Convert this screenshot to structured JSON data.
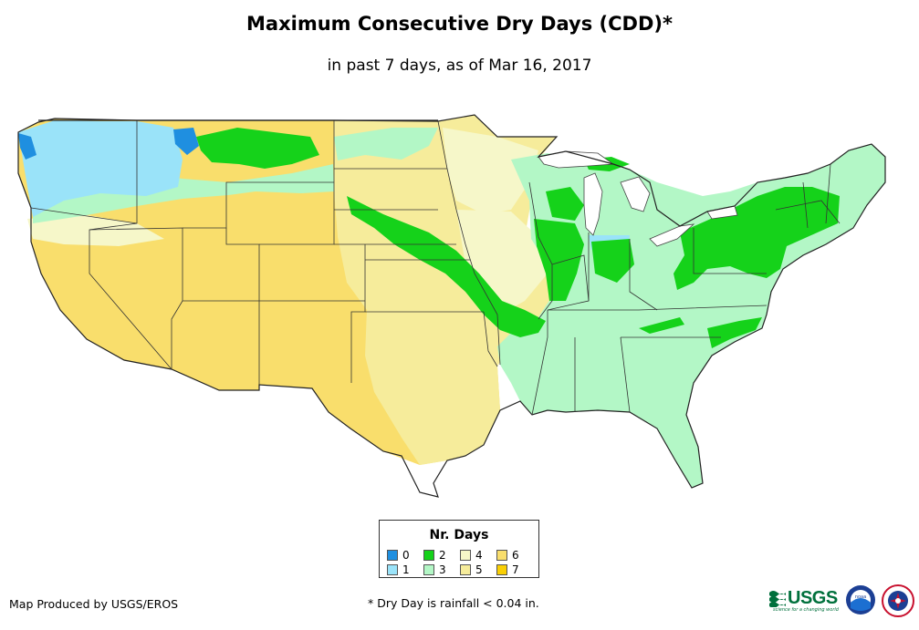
{
  "title": "Maximum Consecutive Dry Days (CDD)*",
  "subtitle": "in past 7 days, as of Mar 16, 2017",
  "legend": {
    "title": "Nr. Days",
    "items": [
      {
        "label": "0",
        "color": "#1f8fe0"
      },
      {
        "label": "1",
        "color": "#9ae3f9"
      },
      {
        "label": "2",
        "color": "#15d21a"
      },
      {
        "label": "3",
        "color": "#b3f7c6"
      },
      {
        "label": "4",
        "color": "#f6f7c9"
      },
      {
        "label": "5",
        "color": "#f6ec9b"
      },
      {
        "label": "6",
        "color": "#f9de6c"
      },
      {
        "label": "7",
        "color": "#f9cf04"
      }
    ]
  },
  "footer": {
    "credit": "Map Produced by USGS/EROS",
    "note": "* Dry Day is rainfall < 0.04 in."
  },
  "logos": {
    "usgs_text": "USGS",
    "usgs_tagline": "science for a changing world",
    "noaa_text": "noaa"
  }
}
